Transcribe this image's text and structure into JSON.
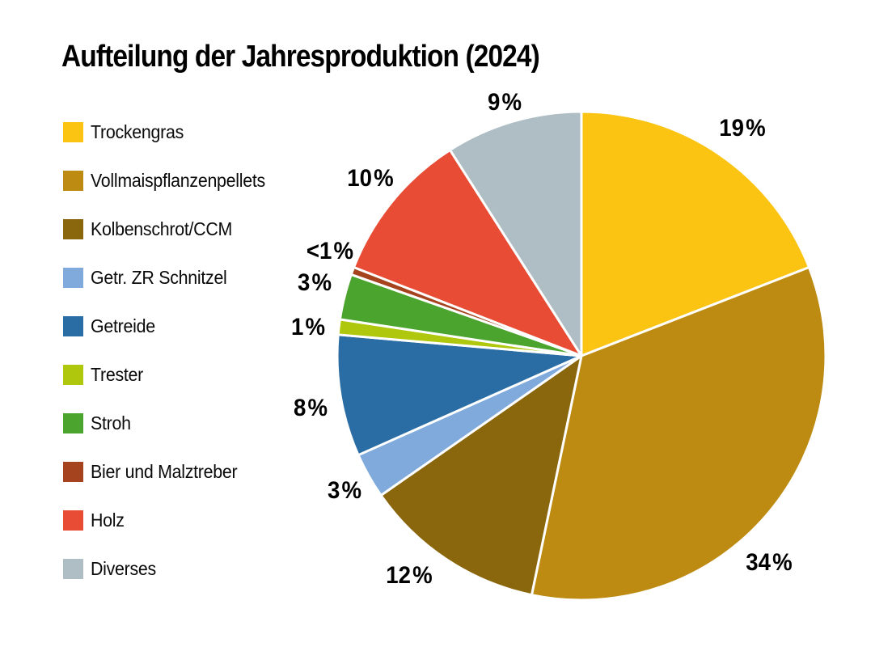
{
  "page": {
    "background_color": "#FFFFFF",
    "text_color": "#000000"
  },
  "chart_data": {
    "type": "pie",
    "title": "Aufteilung der Jahresproduktion (2024)",
    "legend_position": "left",
    "start_angle_deg": 0,
    "direction": "clockwise",
    "slice_separator_color": "#FFFFFF",
    "slices": [
      {
        "label": "Trockengras",
        "value": 19,
        "display": "19 %",
        "color": "#FBC412",
        "nudge": [
          7,
          0
        ]
      },
      {
        "label": "Vollmaispflanzenpellets",
        "value": 34,
        "display": "34 %",
        "color": "#BD8B12",
        "nudge": [
          -27,
          36
        ]
      },
      {
        "label": "Kolbenschrot/CCM",
        "value": 12,
        "display": "12 %",
        "color": "#8A660D",
        "nudge": [
          -26,
          -12
        ]
      },
      {
        "label": "Getr. ZR Schnitzel",
        "value": 3,
        "display": "3 %",
        "color": "#7FAADB",
        "nudge": [
          3,
          0
        ]
      },
      {
        "label": "Getreide",
        "value": 8,
        "display": "8 %",
        "color": "#2A6DA4",
        "nudge": [
          0,
          9
        ]
      },
      {
        "label": "Trester",
        "value": 1,
        "display": "1 %",
        "color": "#AFC70D",
        "nudge": [
          0,
          5
        ]
      },
      {
        "label": "Stroh",
        "value": 3,
        "display": "3 %",
        "color": "#4BA42D",
        "nudge": [
          0,
          -8
        ]
      },
      {
        "label": "Bier und Malztreber",
        "value": 0.5,
        "display": "<1 %",
        "color": "#A5431F",
        "nudge": [
          8,
          -11
        ]
      },
      {
        "label": "Holz",
        "value": 10,
        "display": "10 %",
        "color": "#E84C35",
        "nudge": [
          2,
          -3
        ]
      },
      {
        "label": "Diverses",
        "value": 9,
        "display": "9 %",
        "color": "#AFBEC4",
        "nudge": [
          0,
          13
        ]
      }
    ]
  }
}
